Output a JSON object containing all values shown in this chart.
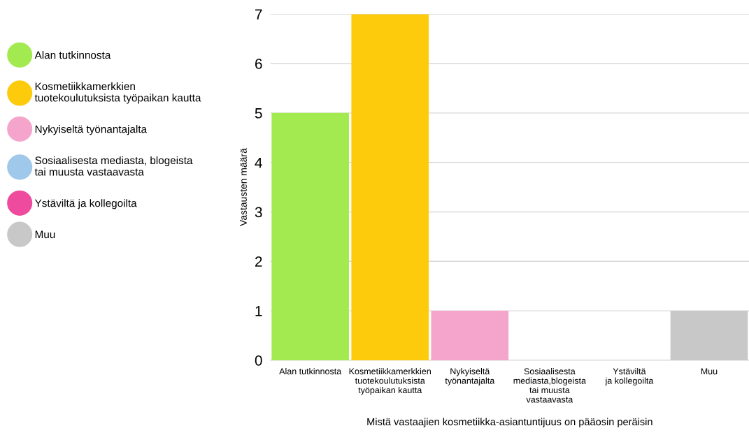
{
  "chart_data": {
    "type": "bar",
    "stacked": true,
    "xlabel": "Mistä vastaajien kosmetiikka-asiantuntijuus on pääosin peräisin",
    "ylabel": "Vastausten määrä",
    "categories": [
      "Alan tutkinnosta",
      "Kosmetiikkamerkkien\ntuotekoulutuksista\ntyöpaikan kautta",
      "Nykyiseltä\ntyönantajalta",
      "Sosiaalisesta\nmediasta,blogeista\ntai muusta\nvastaavasta",
      "Ystäviltä\nja kollegoilta",
      "Muu"
    ],
    "series": [
      {
        "name": "Alan tutkinnosta",
        "color": "#a3ea50",
        "values": [
          5,
          null,
          null,
          null,
          null,
          null
        ]
      },
      {
        "name": "Kosmetiikkamerkkien\ntuotekoulutuksista työpaikan kautta",
        "color": "#fdcb0b",
        "values": [
          null,
          7,
          null,
          null,
          null,
          null
        ]
      },
      {
        "name": "Nykyiseltä työnantajalta",
        "color": "#f5a5cb",
        "values": [
          null,
          null,
          1,
          null,
          null,
          null
        ]
      },
      {
        "name": "Sosiaalisesta mediasta, blogeista\ntai muusta vastaavasta",
        "color": "#a0c8ea",
        "values": [
          null,
          null,
          null,
          0,
          null,
          null
        ]
      },
      {
        "name": "Ystäviltä ja kollegoilta",
        "color": "#ee4a9e",
        "values": [
          null,
          null,
          null,
          null,
          0,
          null
        ]
      },
      {
        "name": "Muu",
        "color": "#c8c8c8",
        "values": [
          null,
          null,
          null,
          null,
          null,
          1
        ]
      }
    ],
    "ylim": [
      0,
      7
    ],
    "yticks": [
      0,
      1,
      2,
      3,
      4,
      5,
      6,
      7
    ],
    "grid": "y",
    "legend": "left"
  }
}
